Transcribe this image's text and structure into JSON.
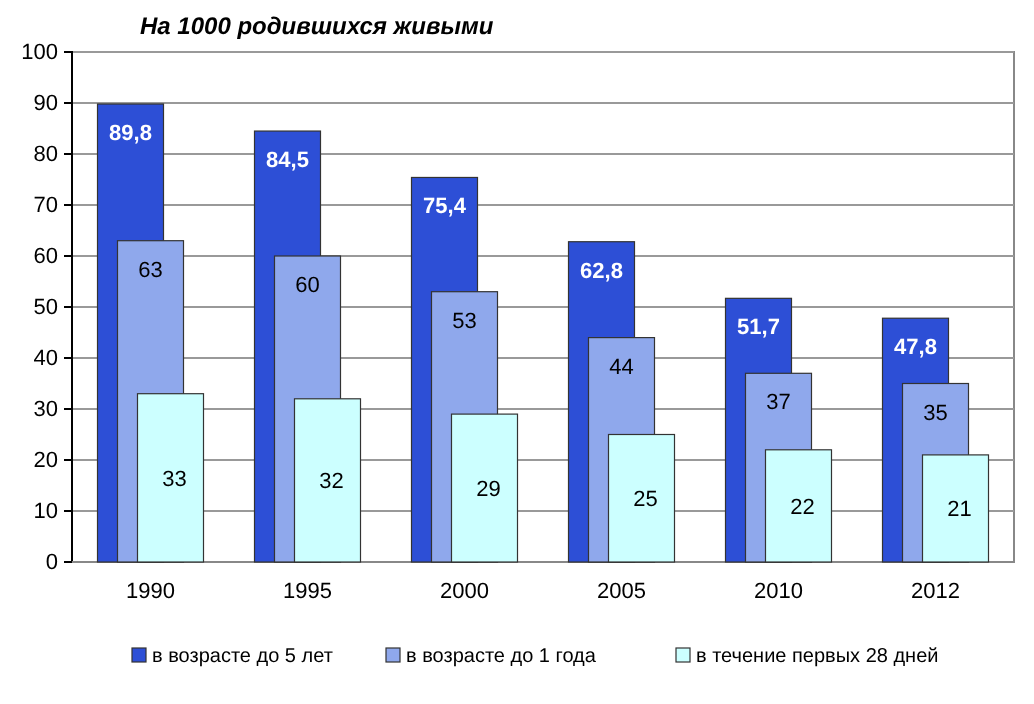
{
  "chart_data": {
    "type": "bar",
    "title": "На 1000 родившихся живыми",
    "categories": [
      "1990",
      "1995",
      "2000",
      "2005",
      "2010",
      "2012"
    ],
    "series": [
      {
        "name": "в возрасте до 5 лет",
        "color": "#2d4fd6",
        "values": [
          89.8,
          84.5,
          75.4,
          62.8,
          51.7,
          47.8
        ],
        "value_labels": [
          "89,8",
          "84,5",
          "75,4",
          "62,8",
          "51,7",
          "47,8"
        ]
      },
      {
        "name": "в возрасте до 1 года",
        "color": "#8fa8ec",
        "values": [
          63,
          60,
          53,
          44,
          37,
          35
        ]
      },
      {
        "name": "в течение первых 28 дней",
        "color": "#ccffff",
        "values": [
          33,
          32,
          29,
          25,
          22,
          21
        ]
      }
    ],
    "data_labels": true,
    "ylim": [
      0,
      100
    ],
    "yticks": [
      0,
      10,
      20,
      30,
      40,
      50,
      60,
      70,
      80,
      90,
      100
    ],
    "grid": "y",
    "legend": "bottom"
  }
}
